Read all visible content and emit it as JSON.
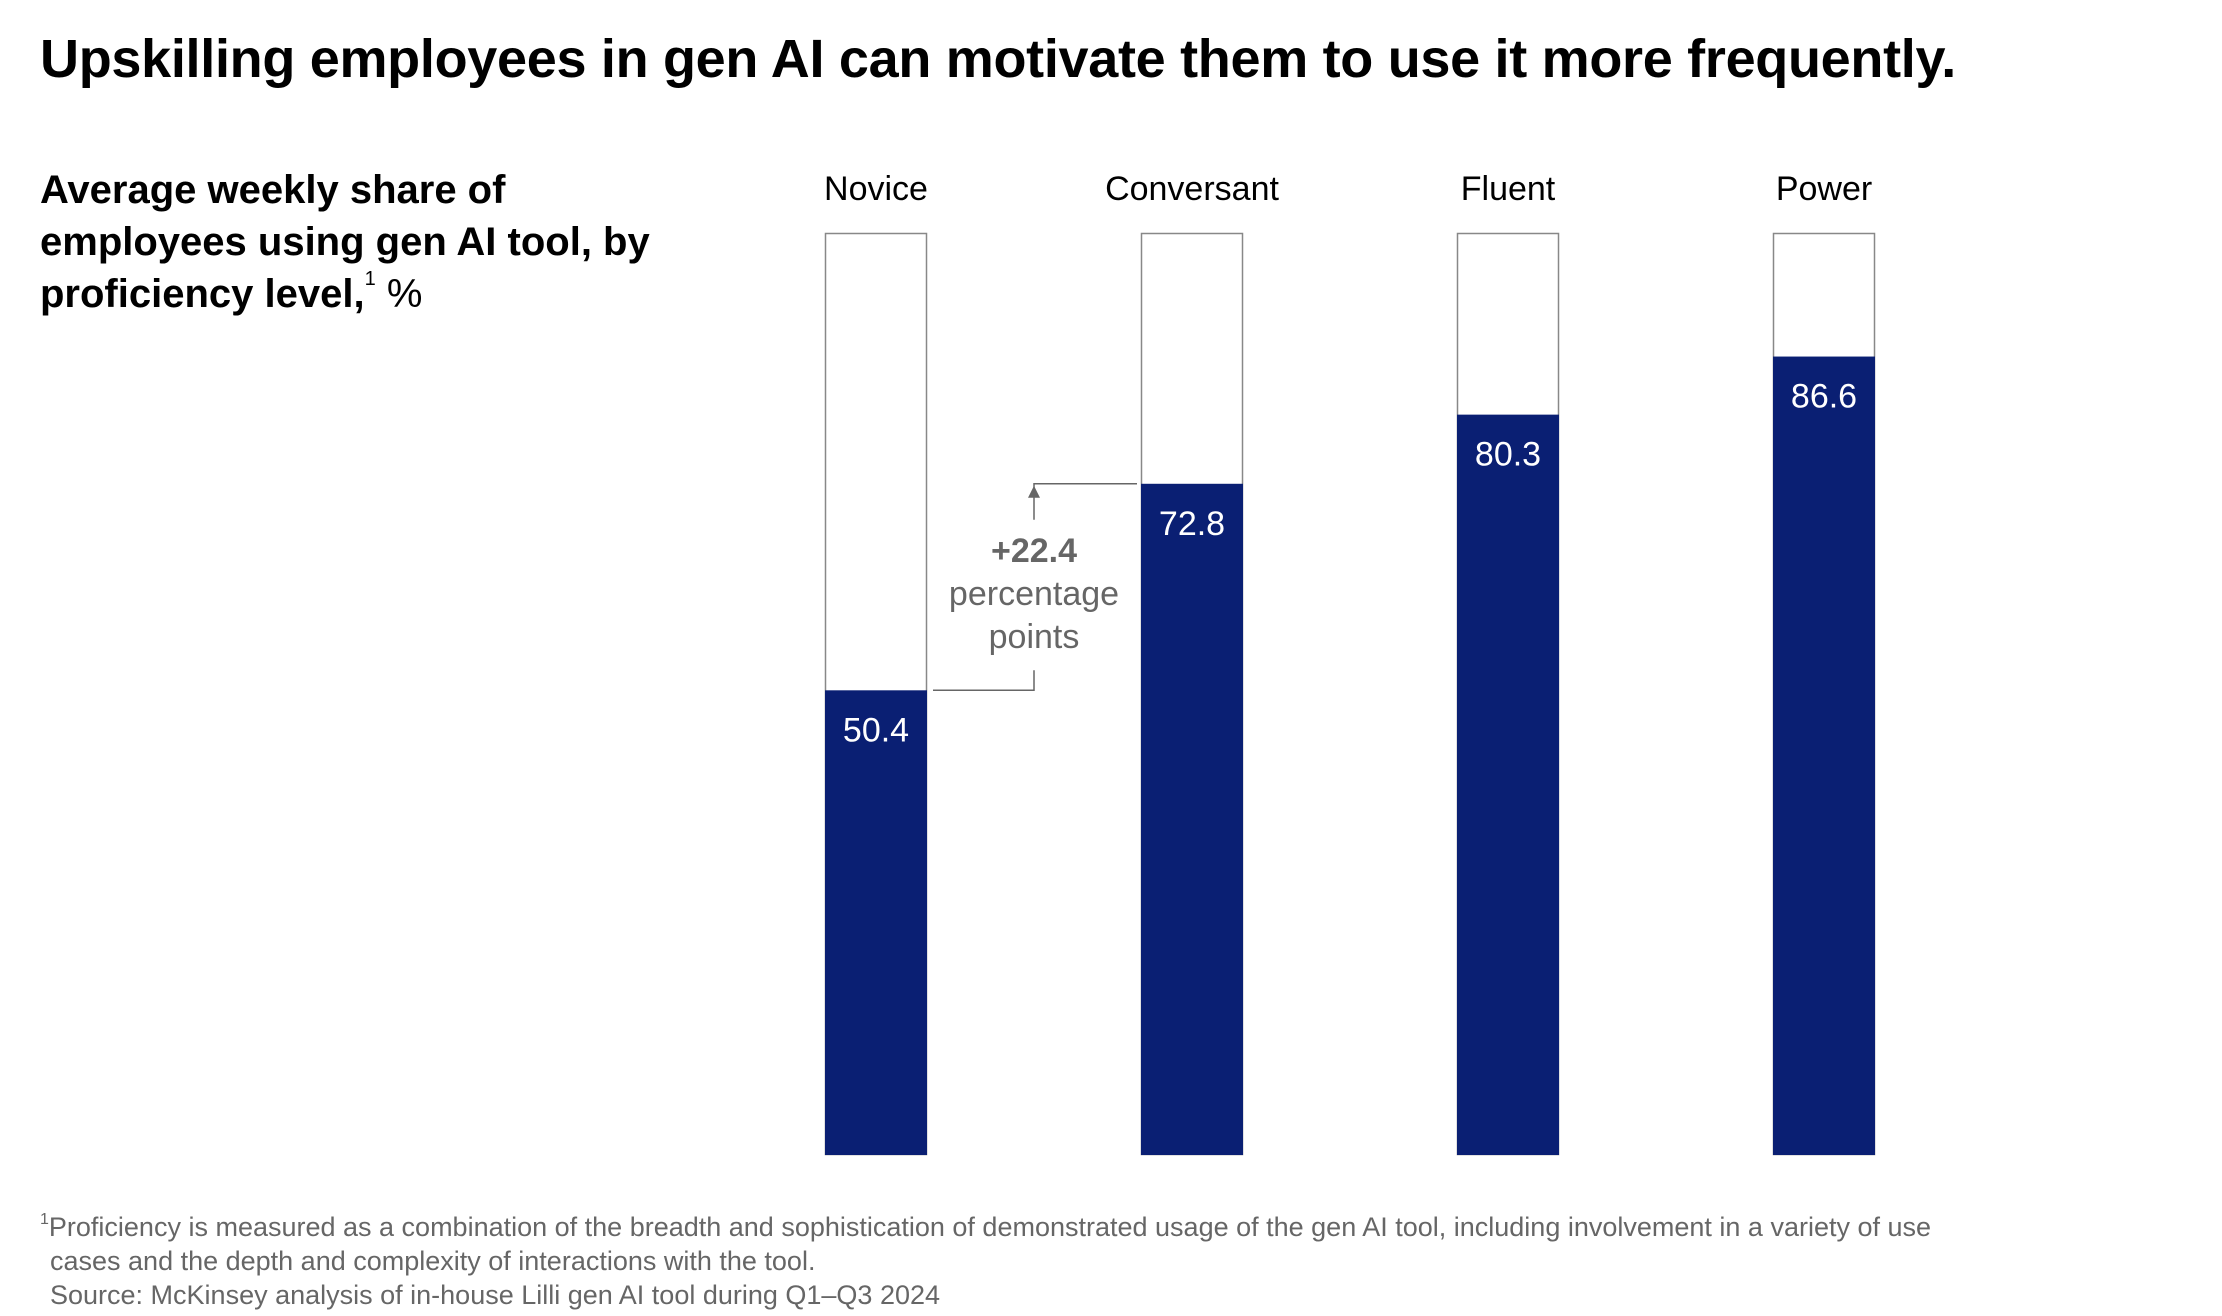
{
  "title": "Upskilling employees in gen AI can motivate them to use it more frequently.",
  "subtitle": {
    "text": "Average weekly share of employees using gen AI tool, by proficiency level,",
    "footnote_marker": "1",
    "unit": "%"
  },
  "chart_data": {
    "type": "bar",
    "title": "Average weekly share of employees using gen AI tool, by proficiency level",
    "ylabel": "%",
    "xlabel": "",
    "ylim": [
      0,
      100
    ],
    "grid": false,
    "categories": [
      "Novice",
      "Conversant",
      "Fluent",
      "Power"
    ],
    "series": [
      {
        "name": "Share of employees using gen AI tool",
        "values": [
          50.4,
          72.8,
          80.3,
          86.6
        ]
      }
    ],
    "value_labels": [
      "50.4",
      "72.8",
      "80.3",
      "86.6"
    ],
    "colors": {
      "bar": "#0A1F73",
      "track_border": "#888888",
      "value_text": "#FFFFFF",
      "annotation": "#666666"
    },
    "annotation": {
      "from_category": "Novice",
      "to_category": "Conversant",
      "value_text": "+22.4",
      "label_line1": "percentage",
      "label_line2": "points"
    }
  },
  "footnotes": {
    "marker": "1",
    "line1": "Proficiency is measured as a combination of the breadth and sophistication of demonstrated usage of the gen AI tool, including involvement in a variety of use",
    "line2": "cases and the depth and complexity of interactions with the tool.",
    "source": "Source: McKinsey analysis of in-house Lilli gen AI tool during Q1–Q3 2024"
  }
}
